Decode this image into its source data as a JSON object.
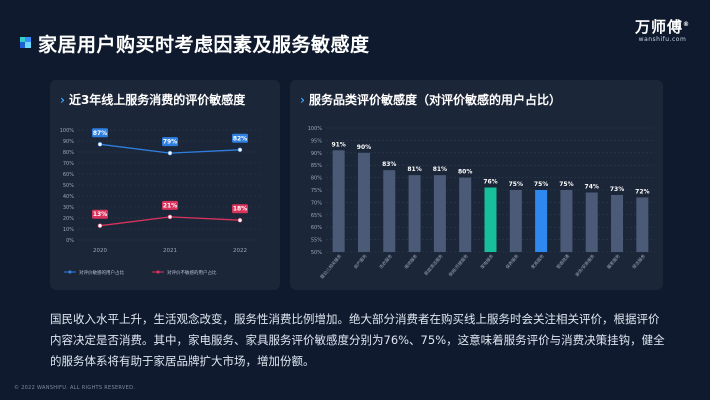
{
  "header": {
    "title": "家居用户购买时考虑因素及服务敏感度",
    "logo_cn": "万师傅",
    "logo_en": "wanshifu.com",
    "logo_mark": "®",
    "accent_colors": [
      "#2fd1c8",
      "#3a8cff",
      "#1e5fd6",
      "#6fd8ff"
    ]
  },
  "left_chart": {
    "card_title": "近3年线上服务消费的评价敏感度",
    "chev": "›"
  },
  "right_chart": {
    "card_title": "服务品类评价敏感度（对评价敏感的用户占比）",
    "chev": "›"
  },
  "chart_data": [
    {
      "type": "line",
      "x": [
        "2020",
        "2021",
        "2022"
      ],
      "ylim": [
        0,
        100
      ],
      "yticks": [
        "0%",
        "10%",
        "20%",
        "30%",
        "40%",
        "50%",
        "60%",
        "70%",
        "80%",
        "90%",
        "100%"
      ],
      "grid": true,
      "legend_position": "bottom",
      "series": [
        {
          "name": "对评价敏感的用户占比",
          "values": [
            87,
            79,
            82
          ],
          "labels": [
            "87%",
            "79%",
            "82%"
          ],
          "color": "#2f7fe0"
        },
        {
          "name": "对评价不敏感的用户占比",
          "values": [
            13,
            21,
            18
          ],
          "labels": [
            "13%",
            "21%",
            "18%"
          ],
          "color": "#d9335c"
        }
      ]
    },
    {
      "type": "bar",
      "ylim": [
        50,
        100
      ],
      "yticks": [
        "50%",
        "55%",
        "60%",
        "65%",
        "70%",
        "75%",
        "80%",
        "85%",
        "90%",
        "95%",
        "100%"
      ],
      "grid": true,
      "categories": [
        "婴幼儿相关服务",
        "房产服务",
        "洗衣服务",
        "维修服务",
        "家庭清洁服务",
        "保姆/月嫂服务",
        "家电服务",
        "保养服务",
        "家具服务",
        "管道疏通",
        "装饰/安装服务",
        "搬家服务",
        "保洁服务"
      ],
      "values": [
        91,
        90,
        83,
        81,
        81,
        80,
        76,
        75,
        75,
        75,
        74,
        73,
        72
      ],
      "labels": [
        "91%",
        "90%",
        "83%",
        "81%",
        "81%",
        "80%",
        "76%",
        "75%",
        "75%",
        "75%",
        "74%",
        "73%",
        "72%"
      ],
      "base_color": "#4b5a76",
      "highlights": [
        {
          "index": 6,
          "color": "#17c09a"
        },
        {
          "index": 8,
          "color": "#2f87f0"
        }
      ]
    }
  ],
  "body_text": "国民收入水平上升，生活观念改变，服务性消费比例增加。绝大部分消费者在购买线上服务时会关注相关评价，根据评价内容决定是否消费。其中，家电服务、家具服务评价敏感度分别为76%、75%，这意味着服务评价与消费决策挂钩，健全的服务体系将有助于家居品牌扩大市场，增加份额。",
  "footer": "© 2022 WANSHIFU. ALL RIGHTS RESERVED."
}
